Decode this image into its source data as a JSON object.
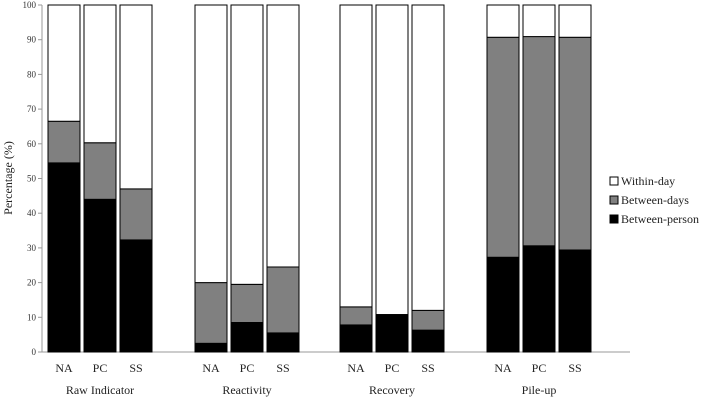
{
  "chart_data": {
    "type": "bar",
    "stacked": true,
    "ylabel": "Percentage (%)",
    "ylim": [
      0,
      100
    ],
    "yticks": [
      0,
      10,
      20,
      30,
      40,
      50,
      60,
      70,
      80,
      90,
      100
    ],
    "grid": false,
    "legend_position": "right",
    "groups": [
      {
        "label": "Raw Indicator",
        "bars": [
          {
            "label": "NA",
            "values": [
              54.5,
              12.0,
              33.5
            ]
          },
          {
            "label": "PC",
            "values": [
              44.0,
              16.3,
              39.7
            ]
          },
          {
            "label": "SS",
            "values": [
              32.3,
              14.7,
              53.0
            ]
          }
        ]
      },
      {
        "label": "Reactivity",
        "bars": [
          {
            "label": "NA",
            "values": [
              2.5,
              17.5,
              80.0
            ]
          },
          {
            "label": "PC",
            "values": [
              8.5,
              11.0,
              80.5
            ]
          },
          {
            "label": "SS",
            "values": [
              5.5,
              19.0,
              75.5
            ]
          }
        ]
      },
      {
        "label": "Recovery",
        "bars": [
          {
            "label": "NA",
            "values": [
              7.8,
              5.2,
              87.0
            ]
          },
          {
            "label": "PC",
            "values": [
              10.8,
              0.0,
              89.2
            ]
          },
          {
            "label": "SS",
            "values": [
              6.3,
              5.7,
              88.0
            ]
          }
        ]
      },
      {
        "label": "Pile-up",
        "bars": [
          {
            "label": "NA",
            "values": [
              27.3,
              63.4,
              9.3
            ]
          },
          {
            "label": "PC",
            "values": [
              30.6,
              60.3,
              9.1
            ]
          },
          {
            "label": "SS",
            "values": [
              29.4,
              61.3,
              9.3
            ]
          }
        ]
      }
    ],
    "series": [
      {
        "name": "Between-person",
        "color": "#000000"
      },
      {
        "name": "Between-days",
        "color": "#808080"
      },
      {
        "name": "Within-day",
        "color": "#ffffff"
      }
    ],
    "legend_order": [
      "Within-day",
      "Between-days",
      "Between-person"
    ]
  }
}
